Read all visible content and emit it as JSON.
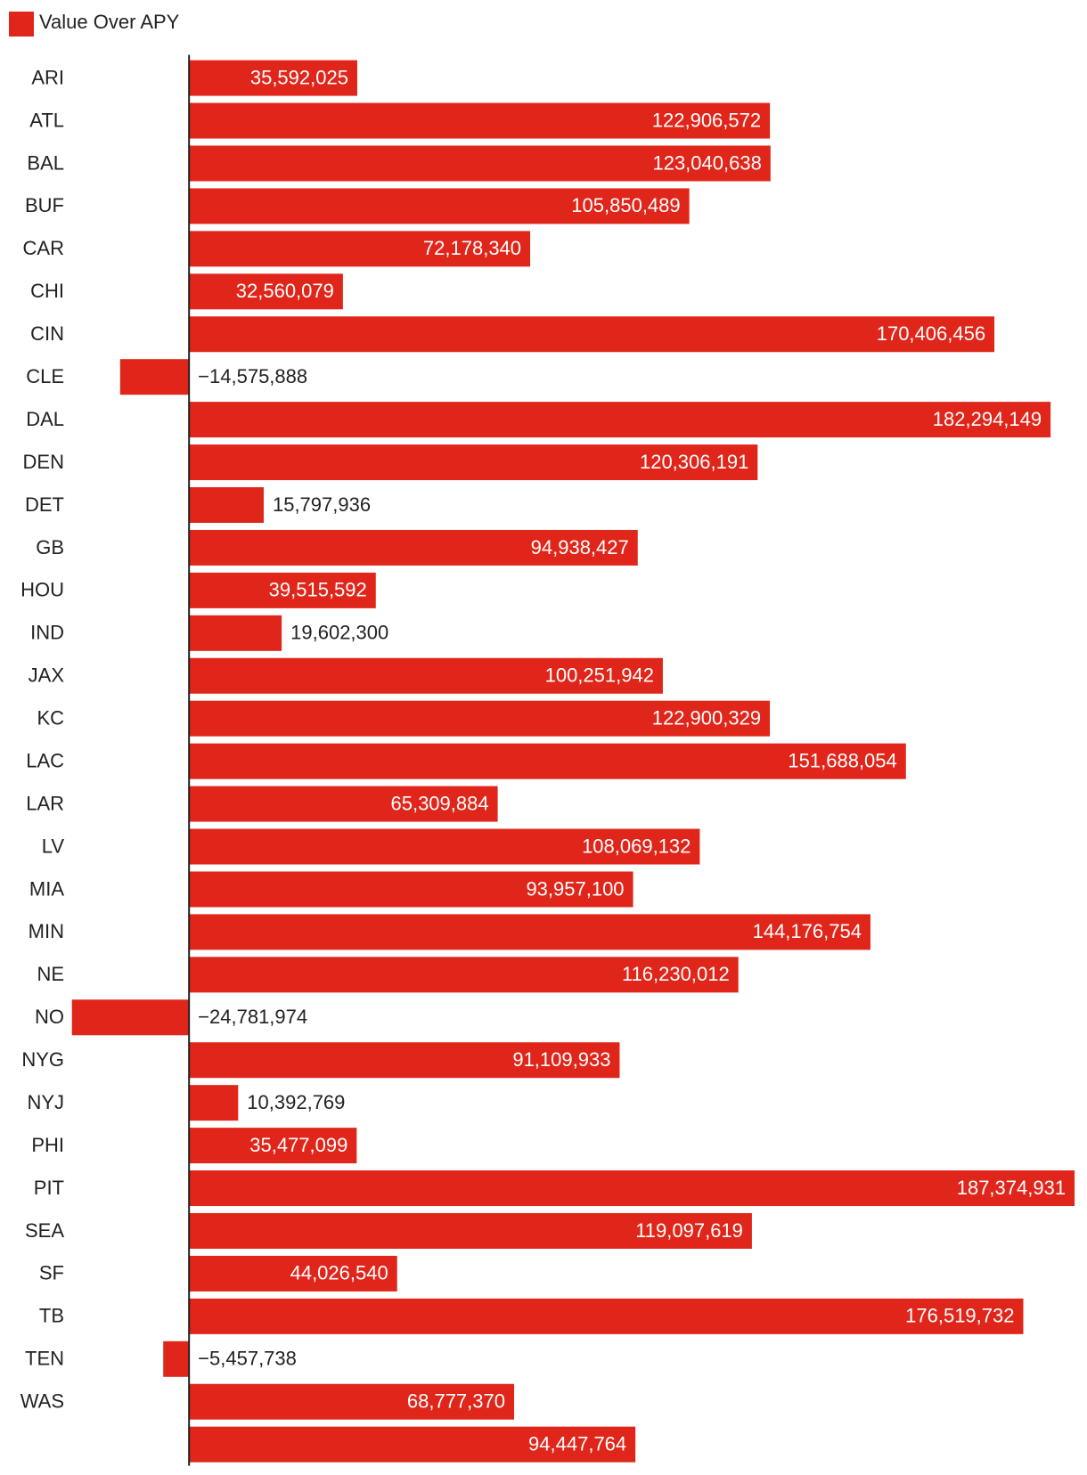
{
  "chart_data": {
    "type": "bar",
    "orientation": "horizontal",
    "series": [
      {
        "name": "Value Over APY",
        "color": "#e0261a",
        "values": [
          35592025,
          122906572,
          123040638,
          105850489,
          72178340,
          32560079,
          170406456,
          -14575888,
          182294149,
          120306191,
          15797936,
          94938427,
          39515592,
          19602300,
          100251942,
          122900329,
          151688054,
          65309884,
          108069132,
          93957100,
          144176754,
          116230012,
          -24781974,
          91109933,
          10392769,
          35477099,
          187374931,
          119097619,
          44026540,
          176519732,
          -5457738,
          68777370,
          94447764
        ],
        "value_labels": [
          "35,592,025",
          "122,906,572",
          "123,040,638",
          "105,850,489",
          "72,178,340",
          "32,560,079",
          "170,406,456",
          "−14,575,888",
          "182,294,149",
          "120,306,191",
          "15,797,936",
          "94,938,427",
          "39,515,592",
          "19,602,300",
          "100,251,942",
          "122,900,329",
          "151,688,054",
          "65,309,884",
          "108,069,132",
          "93,957,100",
          "144,176,754",
          "116,230,012",
          "−24,781,974",
          "91,109,933",
          "10,392,769",
          "35,477,099",
          "187,374,931",
          "119,097,619",
          "44,026,540",
          "176,519,732",
          "−5,457,738",
          "68,777,370",
          "94,447,764"
        ]
      }
    ],
    "categories": [
      "ARI",
      "ATL",
      "BAL",
      "BUF",
      "CAR",
      "CHI",
      "CIN",
      "CLE",
      "DAL",
      "DEN",
      "DET",
      "GB",
      "HOU",
      "IND",
      "JAX",
      "KC",
      "LAC",
      "LAR",
      "LV",
      "MIA",
      "MIN",
      "NE",
      "NO",
      "NYG",
      "NYJ",
      "PHI",
      "PIT",
      "SEA",
      "SF",
      "TB",
      "TEN",
      "WAS",
      null
    ],
    "xlim": [
      -40000000,
      190000000
    ],
    "legend": "top-left"
  }
}
